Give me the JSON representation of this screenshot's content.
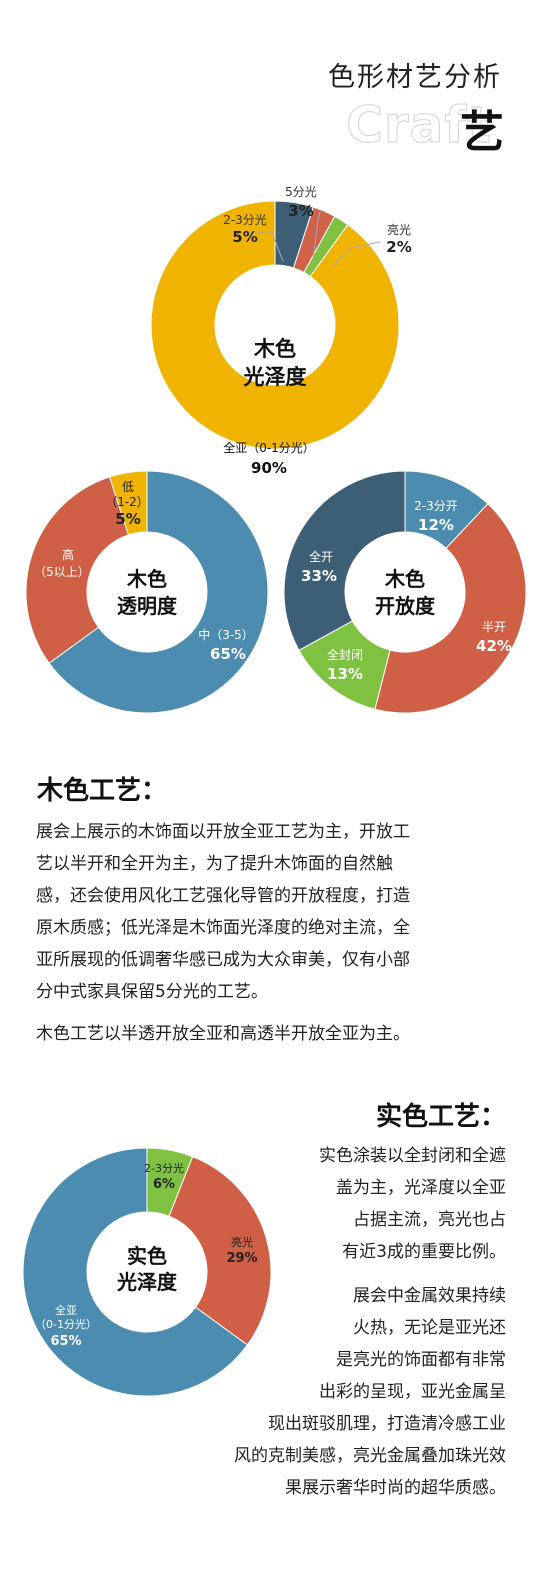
{
  "header": {
    "title": "色形材艺分析",
    "craft_word": "Craft",
    "craft_char": "艺"
  },
  "chart_data": [
    {
      "type": "pie",
      "title": "木色光泽度",
      "center_lines": [
        "木色",
        "光泽度"
      ],
      "slices": [
        {
          "label": "2-3分光",
          "value": 5,
          "color": "#3d5f75"
        },
        {
          "label": "5分光",
          "value": 3,
          "color": "#d1624a"
        },
        {
          "label": "亮光",
          "value": 2,
          "color": "#7fc241"
        },
        {
          "label": "全亚（0-1分光）",
          "value": 90,
          "color": "#f0b400"
        }
      ]
    },
    {
      "type": "pie",
      "title": "木色透明度",
      "center_lines": [
        "木色",
        "透明度"
      ],
      "slices": [
        {
          "label": "中（3-5）",
          "value": 65,
          "color": "#4b8cb0"
        },
        {
          "label": "高（5以上）",
          "value": 30,
          "color": "#cf6046"
        },
        {
          "label": "低（1-2）",
          "value": 5,
          "color": "#f0b400"
        }
      ]
    },
    {
      "type": "pie",
      "title": "木色开放度",
      "center_lines": [
        "木色",
        "开放度"
      ],
      "slices": [
        {
          "label": "2-3分开",
          "value": 12,
          "color": "#4b8cb0"
        },
        {
          "label": "半开",
          "value": 42,
          "color": "#cf6046"
        },
        {
          "label": "全封闭",
          "value": 13,
          "color": "#7fc241"
        },
        {
          "label": "全开",
          "value": 33,
          "color": "#3d5f75"
        }
      ]
    },
    {
      "type": "pie",
      "title": "实色光泽度",
      "center_lines": [
        "实色",
        "光泽度"
      ],
      "slices": [
        {
          "label": "2-3分光",
          "value": 6,
          "color": "#7fc241"
        },
        {
          "label": "亮光",
          "value": 29,
          "color": "#cf6046"
        },
        {
          "label": "全亚（0-1分光）",
          "value": 65,
          "color": "#4b8cb0"
        }
      ]
    }
  ],
  "chart_labels": {
    "gloss": {
      "s0": {
        "name": "2-3分光",
        "pct": "5%"
      },
      "s1": {
        "name": "5分光",
        "pct": "3%"
      },
      "s2": {
        "name": "亮光",
        "pct": "2%"
      },
      "s3": {
        "name": "全亚（0-1分光）",
        "pct": "90%"
      }
    },
    "transparency": {
      "s0_l1": "中（3-5）",
      "s0_pct": "65%",
      "s1_l1": "高",
      "s1_l2": "（5以上）",
      "s2_l1": "低",
      "s2_l2": "（1-2）",
      "s2_pct": "5%"
    },
    "openness": {
      "s0": {
        "name": "2-3分开",
        "pct": "12%"
      },
      "s1": {
        "name": "半开",
        "pct": "42%"
      },
      "s2": {
        "name": "全封闭",
        "pct": "13%"
      },
      "s3": {
        "name": "全开",
        "pct": "33%"
      }
    },
    "solid": {
      "s0": {
        "name": "2-3分光",
        "pct": "6%"
      },
      "s1": {
        "name": "亮光",
        "pct": "29%"
      },
      "s2_l1": "全亚",
      "s2_l2": "（0-1分光）",
      "s2_pct": "65%"
    }
  },
  "wood": {
    "title": "木色工艺：",
    "lines": [
      "展会上展示的木饰面以开放全亚工艺为主，开放工",
      "艺以半开和全开为主，为了提升木饰面的自然触",
      "感，还会使用风化工艺强化导管的开放程度，打造",
      "原木质感；低光泽是木饰面光泽度的绝对主流，全",
      "亚所展现的低调奢华感已成为大众审美，仅有小部",
      "分中式家具保留5分光的工艺。"
    ],
    "summary": "木色工艺以半透开放全亚和高透半开放全亚为主。"
  },
  "solid": {
    "title": "实色工艺：",
    "p1_lines": [
      "实色涂装以全封闭和全遮",
      "盖为主，光泽度以全亚",
      "占据主流，亮光也占",
      "有近3成的重要比例。"
    ],
    "p2_lines": [
      "展会中金属效果持续",
      "火热，无论是亚光还",
      "是亮光的饰面都有非常",
      "出彩的呈现，亚光金属呈",
      "现出斑驳肌理，打造清冷感工业",
      "风的克制美感，亮光金属叠加珠光效",
      "果展示奢华时尚的超华质感。"
    ]
  }
}
